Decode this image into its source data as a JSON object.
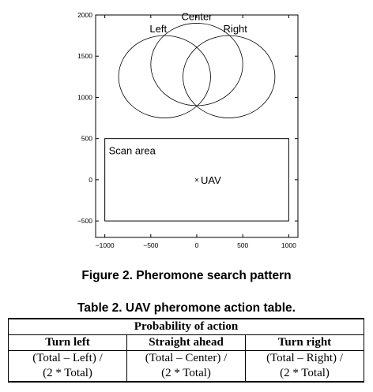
{
  "chart_data": {
    "type": "scatter",
    "title": "",
    "xlabel": "",
    "ylabel": "",
    "xlim": [
      -1100,
      1100
    ],
    "ylim": [
      -700,
      2000
    ],
    "x_ticks": [
      -1000,
      -500,
      0,
      500,
      1000
    ],
    "y_ticks": [
      -500,
      0,
      500,
      1000,
      1500,
      2000
    ],
    "grid": false,
    "circles": [
      {
        "label": "Left",
        "cx": -350,
        "cy": 1250,
        "r": 500
      },
      {
        "label": "Center",
        "cx": 0,
        "cy": 1400,
        "r": 500
      },
      {
        "label": "Right",
        "cx": 350,
        "cy": 1250,
        "r": 500
      }
    ],
    "scan_area": {
      "label": "Scan area",
      "x": [
        -1000,
        1000
      ],
      "y": [
        -500,
        500
      ]
    },
    "points": [
      {
        "label": "UAV",
        "x": 0,
        "y": 0,
        "marker": "×"
      }
    ]
  },
  "figure_caption": "Figure 2. Pheromone search pattern",
  "table": {
    "caption": "Table 2.  UAV pheromone action table.",
    "header_group": "Probability of action",
    "columns": [
      "Turn left",
      "Straight ahead",
      "Turn right"
    ],
    "rows": [
      [
        "(Total – Left) /",
        "(Total – Center) /",
        "(Total – Right) /"
      ],
      [
        "(2 * Total)",
        "(2 * Total)",
        "(2 * Total)"
      ]
    ]
  }
}
